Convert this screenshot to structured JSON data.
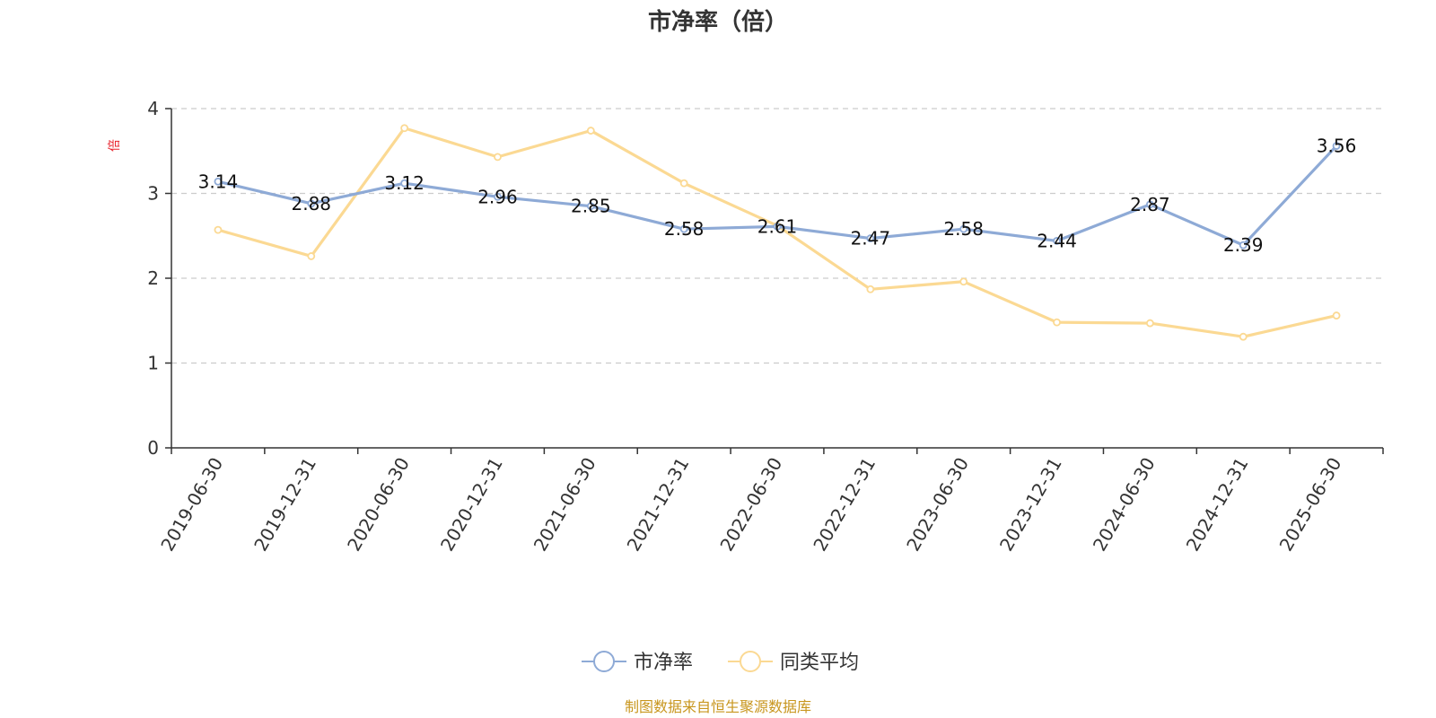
{
  "chart_data": {
    "type": "line",
    "title": "市净率（倍）",
    "ylabel": "倍",
    "ylim": [
      0,
      4
    ],
    "yticks": [
      0,
      1,
      2,
      3,
      4
    ],
    "grid": true,
    "legend_position": "bottom-center",
    "categories": [
      "2019-06-30",
      "2019-12-31",
      "2020-06-30",
      "2020-12-31",
      "2021-06-30",
      "2021-12-31",
      "2022-06-30",
      "2022-12-31",
      "2023-06-30",
      "2023-12-31",
      "2024-06-30",
      "2024-12-31",
      "2025-06-30"
    ],
    "series": [
      {
        "name": "市净率",
        "color": "#8eaad6",
        "show_labels": true,
        "values": [
          3.14,
          2.88,
          3.12,
          2.96,
          2.85,
          2.58,
          2.61,
          2.47,
          2.58,
          2.44,
          2.87,
          2.39,
          3.56
        ]
      },
      {
        "name": "同类平均",
        "color": "#fbd993",
        "show_labels": false,
        "values": [
          2.57,
          2.26,
          3.77,
          3.43,
          3.74,
          3.12,
          2.62,
          1.87,
          1.96,
          1.48,
          1.47,
          1.31,
          1.56
        ]
      }
    ],
    "source": "制图数据来自恒生聚源数据库"
  }
}
